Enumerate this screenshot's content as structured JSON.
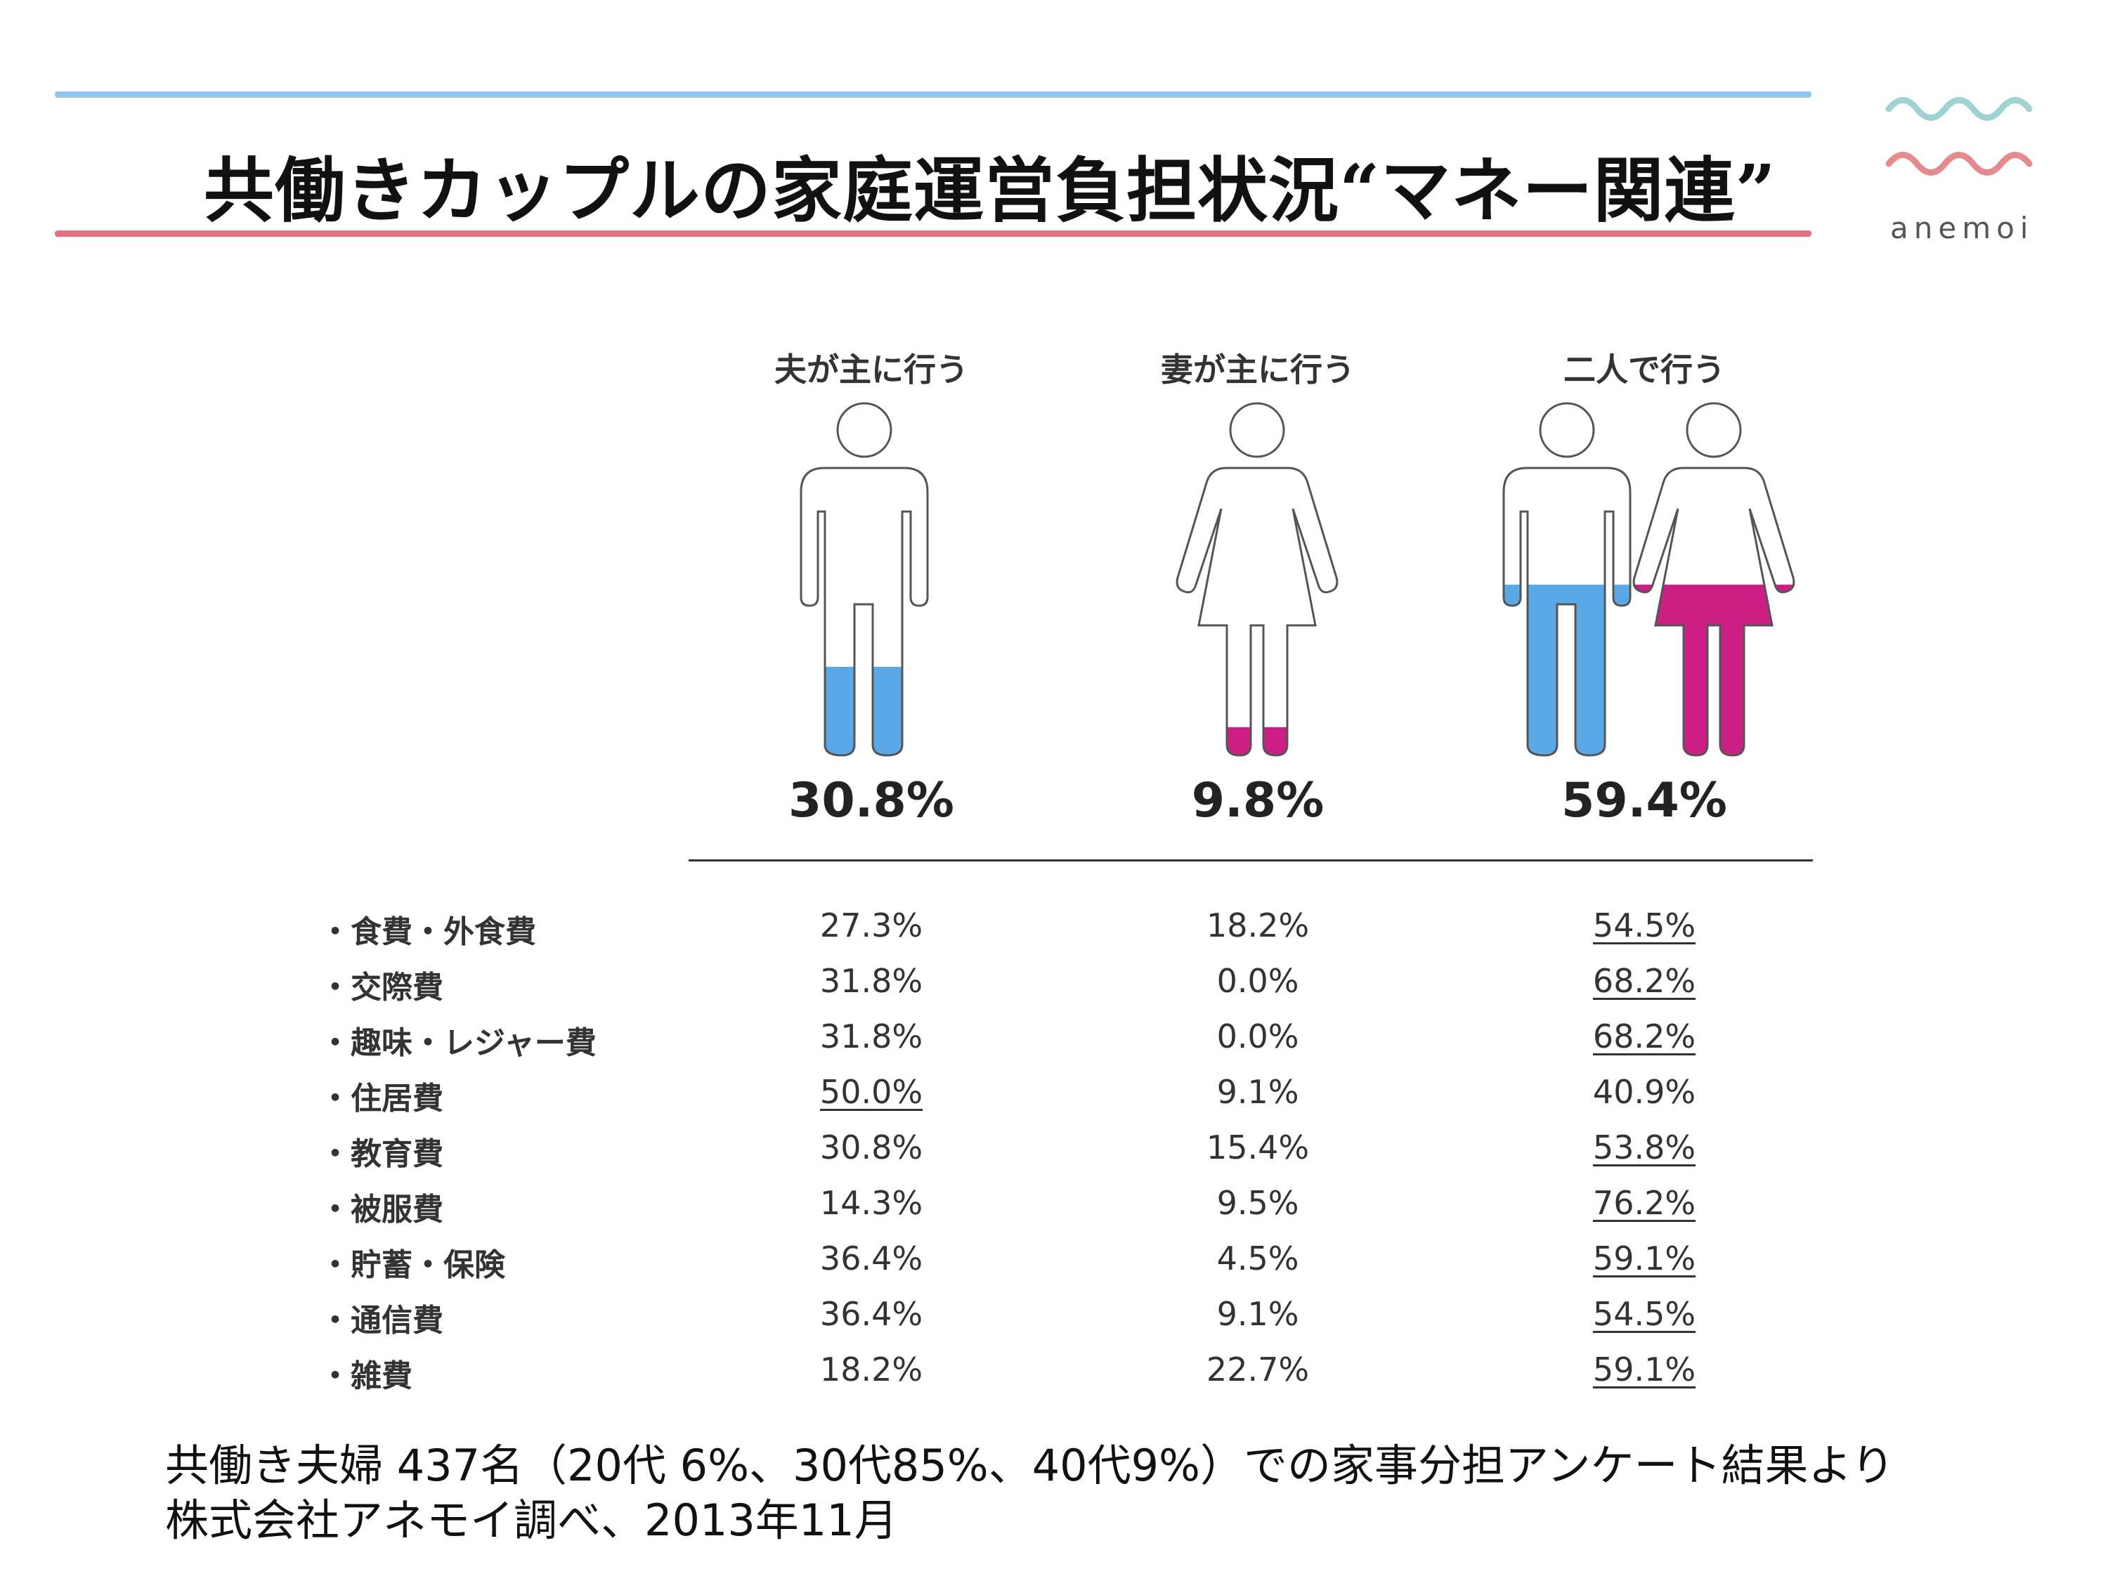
{
  "title": "共働きカップルの家庭運営負担状況“マネー関連”",
  "logo": {
    "text": "anemoi",
    "colors": {
      "wave_top": "#9fd3d3",
      "wave_bottom": "#e58a8f"
    }
  },
  "colors": {
    "husband": "#5aa9e6",
    "wife": "#cc1f86",
    "accent_top": "#8dc7ee",
    "accent_bottom": "#e5727f"
  },
  "chart_data": {
    "type": "table",
    "columns": [
      {
        "label": "夫が主に行う",
        "total_label": "30.8%",
        "total": 30.8,
        "figure": "man-icon"
      },
      {
        "label": "妻が主に行う",
        "total_label": "9.8%",
        "total": 9.8,
        "figure": "woman-icon"
      },
      {
        "label": "二人で行う",
        "total_label": "59.4%",
        "total": 59.4,
        "figure": "couple-icon"
      }
    ],
    "rows": [
      {
        "category": "・食費・外食費",
        "values": [
          "27.3%",
          "18.2%",
          "54.5%"
        ],
        "underlined": [
          false,
          false,
          true
        ]
      },
      {
        "category": "・交際費",
        "values": [
          "31.8%",
          "0.0%",
          "68.2%"
        ],
        "underlined": [
          false,
          false,
          true
        ]
      },
      {
        "category": "・趣味・レジャー費",
        "values": [
          "31.8%",
          "0.0%",
          "68.2%"
        ],
        "underlined": [
          false,
          false,
          true
        ]
      },
      {
        "category": "・住居費",
        "values": [
          "50.0%",
          "9.1%",
          "40.9%"
        ],
        "underlined": [
          true,
          false,
          false
        ]
      },
      {
        "category": "・教育費",
        "values": [
          "30.8%",
          "15.4%",
          "53.8%"
        ],
        "underlined": [
          false,
          false,
          true
        ]
      },
      {
        "category": "・被服費",
        "values": [
          "14.3%",
          "9.5%",
          "76.2%"
        ],
        "underlined": [
          false,
          false,
          true
        ]
      },
      {
        "category": "・貯蓄・保険",
        "values": [
          "36.4%",
          "4.5%",
          "59.1%"
        ],
        "underlined": [
          false,
          false,
          true
        ]
      },
      {
        "category": "・通信費",
        "values": [
          "36.4%",
          "9.1%",
          "54.5%"
        ],
        "underlined": [
          false,
          false,
          true
        ]
      },
      {
        "category": "・雑費",
        "values": [
          "18.2%",
          "22.7%",
          "59.1%"
        ],
        "underlined": [
          false,
          false,
          true
        ]
      }
    ]
  },
  "footnote": {
    "line1": "共働き夫婦 437名（20代 6%、30代85%、40代9%）での家事分担アンケート結果より",
    "line2": "株式会社アネモイ調べ、2013年11月"
  }
}
